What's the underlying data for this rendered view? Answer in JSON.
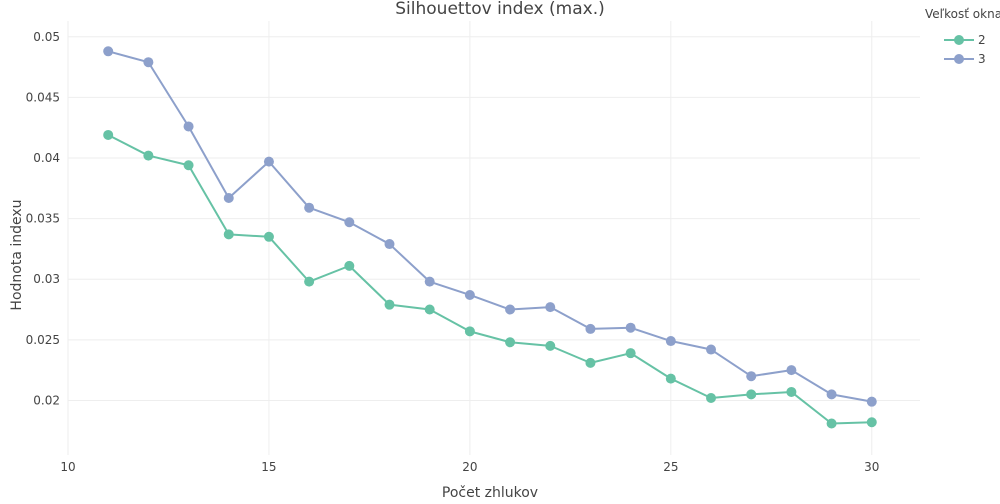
{
  "chart_data": {
    "type": "line",
    "title": "Silhouettov index (max.)",
    "xlabel": "Počet zhlukov",
    "ylabel": "Hodnota indexu",
    "xlim": [
      10,
      31.2
    ],
    "ylim": [
      0.0155,
      0.0513
    ],
    "xticks": [
      10,
      15,
      20,
      25,
      30
    ],
    "yticks": [
      0.02,
      0.025,
      0.03,
      0.035,
      0.04,
      0.045,
      0.05
    ],
    "xtick_labels": [
      "10",
      "15",
      "20",
      "25",
      "30"
    ],
    "ytick_labels": [
      "0.02",
      "0.025",
      "0.03",
      "0.035",
      "0.04",
      "0.045",
      "0.05"
    ],
    "grid": true,
    "legend": {
      "title": "Veľkosť okna",
      "placement": "top-right"
    },
    "x": [
      11,
      12,
      13,
      14,
      15,
      16,
      17,
      18,
      19,
      20,
      21,
      22,
      23,
      24,
      25,
      26,
      27,
      28,
      29,
      30
    ],
    "series": [
      {
        "name": "2",
        "color": "#66c2a5",
        "values": [
          0.0419,
          0.0402,
          0.0394,
          0.0337,
          0.0335,
          0.0298,
          0.0311,
          0.0279,
          0.0275,
          0.0257,
          0.0248,
          0.0245,
          0.0231,
          0.0239,
          0.0218,
          0.0202,
          0.0205,
          0.0207,
          0.0181,
          0.0182
        ]
      },
      {
        "name": "3",
        "color": "#8da0cb",
        "values": [
          0.0488,
          0.0479,
          0.0426,
          0.0367,
          0.0397,
          0.0359,
          0.0347,
          0.0329,
          0.0298,
          0.0287,
          0.0275,
          0.0277,
          0.0259,
          0.026,
          0.0249,
          0.0242,
          0.022,
          0.0225,
          0.0205,
          0.0199
        ]
      }
    ]
  }
}
